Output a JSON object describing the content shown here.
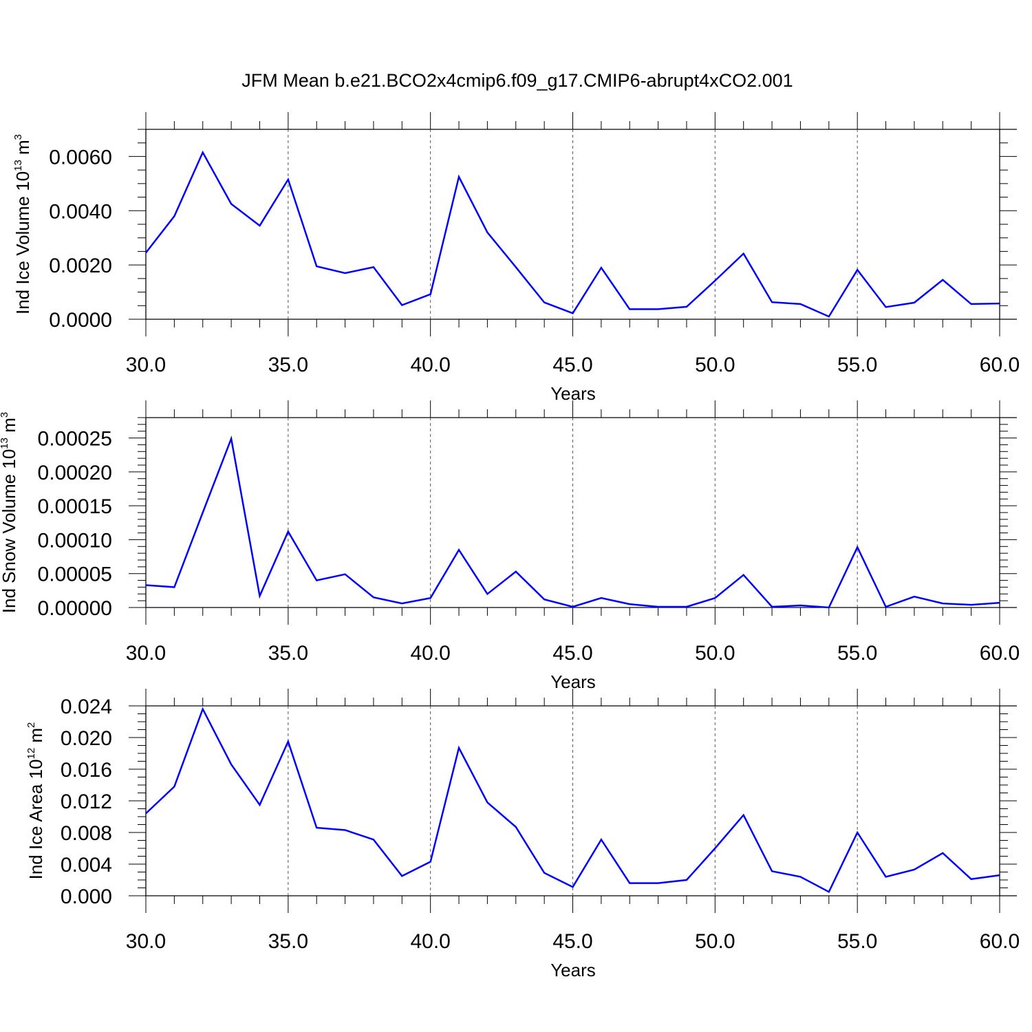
{
  "title": "JFM Mean b.e21.BCO2x4cmip6.f09_g17.CMIP6-abrupt4xCO2.001",
  "line_color": "#0000ff",
  "chart_data": [
    {
      "type": "line",
      "title": "JFM Mean b.e21.BCO2x4cmip6.f09_g17.CMIP6-abrupt4xCO2.001",
      "xlabel": "Years",
      "ylabel_text": "Ind Ice Volume 10",
      "ylabel_exp": "13",
      "ylabel_unit": " m",
      "ylabel_unit_exp": "3",
      "xlim": [
        30,
        60
      ],
      "ylim": [
        0,
        0.007
      ],
      "xticks": [
        30,
        35,
        40,
        45,
        50,
        55,
        60
      ],
      "xtick_labels": [
        "30.0",
        "35.0",
        "40.0",
        "45.0",
        "50.0",
        "55.0",
        "60.0"
      ],
      "yticks": [
        0,
        0.002,
        0.004,
        0.006
      ],
      "ytick_labels": [
        "0.0000",
        "0.0020",
        "0.0040",
        "0.0060"
      ],
      "y_minor_step": 0.0005,
      "grid": "vertical dashed at major x ticks",
      "x": [
        30,
        31,
        32,
        33,
        34,
        35,
        36,
        37,
        38,
        39,
        40,
        41,
        42,
        43,
        44,
        45,
        46,
        47,
        48,
        49,
        50,
        51,
        52,
        53,
        54,
        55,
        56,
        57,
        58,
        59,
        60
      ],
      "series": [
        {
          "values": [
            0.00245,
            0.0038,
            0.00615,
            0.00425,
            0.00345,
            0.00515,
            0.00195,
            0.0017,
            0.00192,
            0.00052,
            0.00092,
            0.00525,
            0.0032,
            0.00192,
            0.00062,
            0.00022,
            0.0019,
            0.00037,
            0.00037,
            0.00046,
            0.00142,
            0.00242,
            0.00063,
            0.00056,
            0.0001,
            0.00182,
            0.00045,
            0.00061,
            0.00145,
            0.00056,
            0.00058
          ]
        }
      ]
    },
    {
      "type": "line",
      "xlabel": "Years",
      "ylabel_text": "Ind Snow Volume 10",
      "ylabel_exp": "13",
      "ylabel_unit": " m",
      "ylabel_unit_exp": "3",
      "xlim": [
        30,
        60
      ],
      "ylim": [
        0,
        0.00028
      ],
      "xticks": [
        30,
        35,
        40,
        45,
        50,
        55,
        60
      ],
      "xtick_labels": [
        "30.0",
        "35.0",
        "40.0",
        "45.0",
        "50.0",
        "55.0",
        "60.0"
      ],
      "yticks": [
        0,
        5e-05,
        0.0001,
        0.00015,
        0.0002,
        0.00025
      ],
      "ytick_labels": [
        "0.00000",
        "0.00005",
        "0.00010",
        "0.00015",
        "0.00020",
        "0.00025"
      ],
      "y_minor_step": 1e-05,
      "grid": "vertical dashed at major x ticks",
      "x": [
        30,
        31,
        32,
        33,
        34,
        35,
        36,
        37,
        38,
        39,
        40,
        41,
        42,
        43,
        44,
        45,
        46,
        47,
        48,
        49,
        50,
        51,
        52,
        53,
        54,
        55,
        56,
        57,
        58,
        59,
        60
      ],
      "series": [
        {
          "values": [
            3.3e-05,
            3e-05,
            0.00014,
            0.000249,
            1.7e-05,
            0.000112,
            4e-05,
            4.9e-05,
            1.5e-05,
            6e-06,
            1.4e-05,
            8.5e-05,
            2e-05,
            5.3e-05,
            1.2e-05,
            1e-06,
            1.4e-05,
            5e-06,
            1e-06,
            1e-06,
            1.4e-05,
            4.8e-05,
            1e-06,
            3e-06,
            0.0,
            8.9e-05,
            1e-06,
            1.6e-05,
            6e-06,
            4e-06,
            7e-06
          ]
        }
      ]
    },
    {
      "type": "line",
      "xlabel": "Years",
      "ylabel_text": "Ind Ice Area 10",
      "ylabel_exp": "12",
      "ylabel_unit": " m",
      "ylabel_unit_exp": "2",
      "xlim": [
        30,
        60
      ],
      "ylim": [
        0,
        0.024
      ],
      "xticks": [
        30,
        35,
        40,
        45,
        50,
        55,
        60
      ],
      "xtick_labels": [
        "30.0",
        "35.0",
        "40.0",
        "45.0",
        "50.0",
        "55.0",
        "60.0"
      ],
      "yticks": [
        0,
        0.004,
        0.008,
        0.012,
        0.016,
        0.02,
        0.024
      ],
      "ytick_labels": [
        "0.000",
        "0.004",
        "0.008",
        "0.012",
        "0.016",
        "0.020",
        "0.024"
      ],
      "y_minor_step": 0.001,
      "grid": "vertical dashed at major x ticks",
      "x": [
        30,
        31,
        32,
        33,
        34,
        35,
        36,
        37,
        38,
        39,
        40,
        41,
        42,
        43,
        44,
        45,
        46,
        47,
        48,
        49,
        50,
        51,
        52,
        53,
        54,
        55,
        56,
        57,
        58,
        59,
        60
      ],
      "series": [
        {
          "values": [
            0.0104,
            0.0138,
            0.0236,
            0.0166,
            0.0115,
            0.0195,
            0.0086,
            0.0083,
            0.0071,
            0.0025,
            0.0043,
            0.0187,
            0.0118,
            0.0087,
            0.0029,
            0.0011,
            0.0071,
            0.0016,
            0.0016,
            0.002,
            0.006,
            0.0102,
            0.0031,
            0.0024,
            0.0005,
            0.008,
            0.0024,
            0.0033,
            0.0054,
            0.0021,
            0.0026
          ]
        }
      ]
    }
  ]
}
